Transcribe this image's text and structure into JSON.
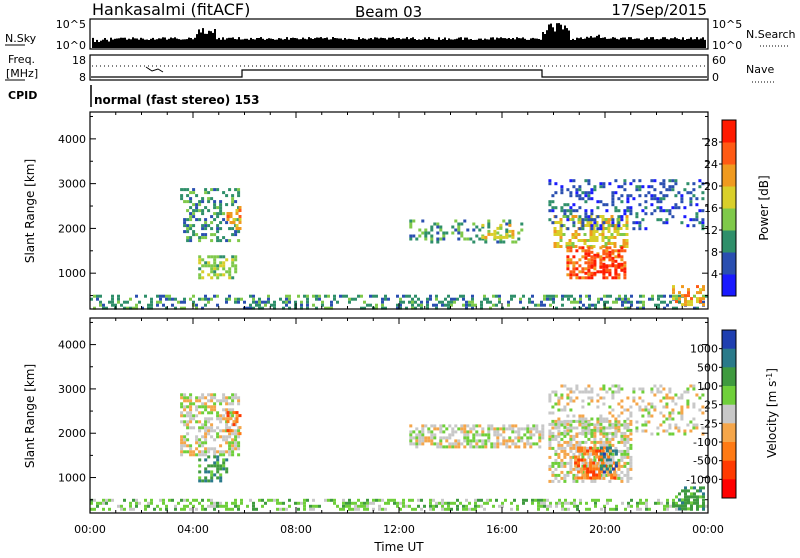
{
  "header": {
    "station": "Hankasalmi (fitACF)",
    "beam": "Beam 03",
    "date": "17/Sep/2015"
  },
  "nsky_panel": {
    "left_label": "N.Sky",
    "right_label": "N.Search",
    "left_ticks": [
      "10^5",
      "10^0"
    ],
    "right_ticks": [
      "10^5",
      "10^0"
    ]
  },
  "freq_panel": {
    "left_label_1": "Freq.",
    "left_label_2": "[MHz]",
    "right_label": "Nave",
    "left_ticks": [
      "18",
      "8"
    ],
    "right_ticks": [
      "60",
      "0"
    ]
  },
  "cpid_panel": {
    "label": "CPID",
    "value": "normal (fast stereo) 153"
  },
  "colors": {
    "frame": "#000000",
    "background": "#ffffff"
  },
  "chart_data": [
    {
      "type": "heatmap",
      "name": "power",
      "ylabel": "Slant Range [km]",
      "yticks": [
        "1000",
        "2000",
        "3000",
        "4000"
      ],
      "ylim": [
        200,
        4600
      ],
      "xlim": [
        0,
        24
      ],
      "colorbar": {
        "label": "Power [dB]",
        "ticks": [
          "4",
          "8",
          "12",
          "16",
          "20",
          "24",
          "28"
        ],
        "colors": [
          "#1a1aff",
          "#2a4fb0",
          "#2f8f6a",
          "#7fc94a",
          "#d9cf2a",
          "#f09a1f",
          "#ff5a14",
          "#ff1a00"
        ]
      },
      "regions": [
        {
          "t": [
            0.0,
            24.0
          ],
          "r": [
            250,
            520
          ],
          "level": 2,
          "density": 0.4
        },
        {
          "t": [
            3.5,
            5.8
          ],
          "r": [
            1700,
            2900
          ],
          "level": 2,
          "density": 0.35
        },
        {
          "t": [
            4.2,
            5.6
          ],
          "r": [
            900,
            1400
          ],
          "level": 3,
          "density": 0.5
        },
        {
          "t": [
            5.3,
            5.8
          ],
          "r": [
            1900,
            2500
          ],
          "level": 5,
          "density": 0.5
        },
        {
          "t": [
            12.4,
            16.8
          ],
          "r": [
            1700,
            2200
          ],
          "level": 2,
          "density": 0.3
        },
        {
          "t": [
            15.2,
            16.5
          ],
          "r": [
            1800,
            2100
          ],
          "level": 4,
          "density": 0.4
        },
        {
          "t": [
            18.0,
            20.8
          ],
          "r": [
            1600,
            2300
          ],
          "level": 4,
          "density": 0.55
        },
        {
          "t": [
            18.5,
            20.8
          ],
          "r": [
            900,
            1600
          ],
          "level": 6,
          "density": 0.55
        },
        {
          "t": [
            19.2,
            20.6
          ],
          "r": [
            1000,
            1500
          ],
          "level": 7,
          "density": 0.4
        },
        {
          "t": [
            17.8,
            23.8
          ],
          "r": [
            2000,
            3100
          ],
          "level": 1,
          "density": 0.25
        },
        {
          "t": [
            22.6,
            23.8
          ],
          "r": [
            300,
            800
          ],
          "level": 5,
          "density": 0.45
        }
      ]
    },
    {
      "type": "heatmap",
      "name": "velocity",
      "ylabel": "Slant Range [km]",
      "xlabel": "Time UT",
      "xticks": [
        "00:00",
        "04:00",
        "08:00",
        "12:00",
        "16:00",
        "20:00",
        "00:00"
      ],
      "yticks": [
        "1000",
        "2000",
        "3000",
        "4000"
      ],
      "ylim": [
        200,
        4600
      ],
      "xlim": [
        0,
        24
      ],
      "colorbar": {
        "label": "Velocity [m s^-1]",
        "ticks": [
          "1000",
          "500",
          "100",
          "25",
          "-25",
          "-100",
          "-500",
          "-1000"
        ],
        "colors": [
          "#1f3fb0",
          "#2a7a8a",
          "#3f9a3f",
          "#6fcf3a",
          "#c8c8c8",
          "#f5a64a",
          "#ff7a14",
          "#ff3a00",
          "#ff0000"
        ]
      },
      "regions": [
        {
          "t": [
            0.0,
            24.0
          ],
          "r": [
            250,
            520
          ],
          "level": 3,
          "density": 0.45
        },
        {
          "t": [
            3.5,
            5.8
          ],
          "r": [
            1500,
            2900
          ],
          "level": 4,
          "density": 0.55
        },
        {
          "t": [
            5.3,
            5.8
          ],
          "r": [
            2000,
            2500
          ],
          "level": 6,
          "density": 0.5
        },
        {
          "t": [
            4.2,
            5.3
          ],
          "r": [
            900,
            1500
          ],
          "level": 2,
          "density": 0.45
        },
        {
          "t": [
            12.4,
            17.6
          ],
          "r": [
            1700,
            2200
          ],
          "level": 4,
          "density": 0.6
        },
        {
          "t": [
            17.8,
            21.0
          ],
          "r": [
            900,
            2300
          ],
          "level": 4,
          "density": 0.6
        },
        {
          "t": [
            18.8,
            20.4
          ],
          "r": [
            1000,
            1700
          ],
          "level": 6,
          "density": 0.55
        },
        {
          "t": [
            19.8,
            20.4
          ],
          "r": [
            1100,
            1700
          ],
          "level": 1,
          "density": 0.4
        },
        {
          "t": [
            17.8,
            23.8
          ],
          "r": [
            2000,
            3100
          ],
          "level": 4,
          "density": 0.3
        },
        {
          "t": [
            22.6,
            23.8
          ],
          "r": [
            300,
            800
          ],
          "level": 2,
          "density": 0.45
        }
      ]
    }
  ]
}
